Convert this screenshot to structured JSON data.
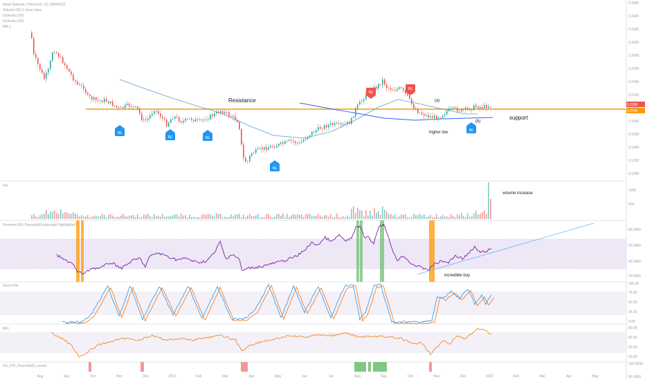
{
  "chart": {
    "legend": {
      "symbol": "Mask Network / TetherUS, 1D, BINANCE",
      "lines": [
        "Volume (20)  5  close  false",
        "Ichimoku (20)",
        "Ichimoku (20)",
        "MA 1"
      ]
    },
    "annotations": {
      "resistance": "Resistance",
      "support": "support",
      "higher_low": "higher low",
      "wave_a": "(a)",
      "wave_b": "(b)",
      "volume_increase": "volume increase",
      "incredible_buy": "incredible buy"
    },
    "signal_label": "BE",
    "price_tags": {
      "current": "0.2558",
      "level": "0.2540"
    },
    "price_scale": [
      "0.3600",
      "0.3400",
      "0.3200",
      "0.3000",
      "0.2800",
      "0.2600",
      "0.2400",
      "0.2200",
      "0.2000",
      "0.1800",
      "0.1600",
      "0.1400",
      "0.1200",
      "0.1000"
    ],
    "pane_titles": {
      "volume": "Vol",
      "rsi": "Premium RSI  Oversold/Overbought  Highlighted",
      "stoch": "Stoch RSI",
      "mfi": "MFI",
      "signal": "SG_RSI_Oversold/B_Levels"
    },
    "volume_scale": [
      "100K",
      "50K"
    ],
    "rsi_scale": [
      "80.0000",
      "60.0000",
      "40.0000",
      "20.0000"
    ],
    "stoch_scale": [
      "100.00",
      "75.00",
      "50.00",
      "25.00",
      "0.00"
    ],
    "mfi_scale": [
      "80.00",
      "60.00",
      "40.00",
      "20.00"
    ],
    "signal_scale": [
      "100.0000",
      "50.0000"
    ],
    "time_axis": [
      "Aug",
      "Sep",
      "Oct",
      "Nov",
      "Dec",
      "2021",
      "Feb",
      "Mar",
      "Apr",
      "May",
      "Jun",
      "Jul",
      "Aug",
      "Sep",
      "Oct",
      "Nov",
      "Dec",
      "2022",
      "Feb",
      "Mar",
      "Apr",
      "May"
    ],
    "colors": {
      "up": "#26a69a",
      "down": "#ef5350",
      "resistance": "#ff9800",
      "ma": "#5b9bd5",
      "ma_long": "#2962ff",
      "rsi": "#7b1fa2",
      "rsi_band": "#ede7f6",
      "stoch_k": "#2196f3",
      "stoch_d": "#ff6d00",
      "mfi": "#f57c00",
      "badge_buy": "#2196f3",
      "badge_sell": "#ef5350",
      "oversold": "#ff9800",
      "overbought": "#4caf50"
    }
  }
}
